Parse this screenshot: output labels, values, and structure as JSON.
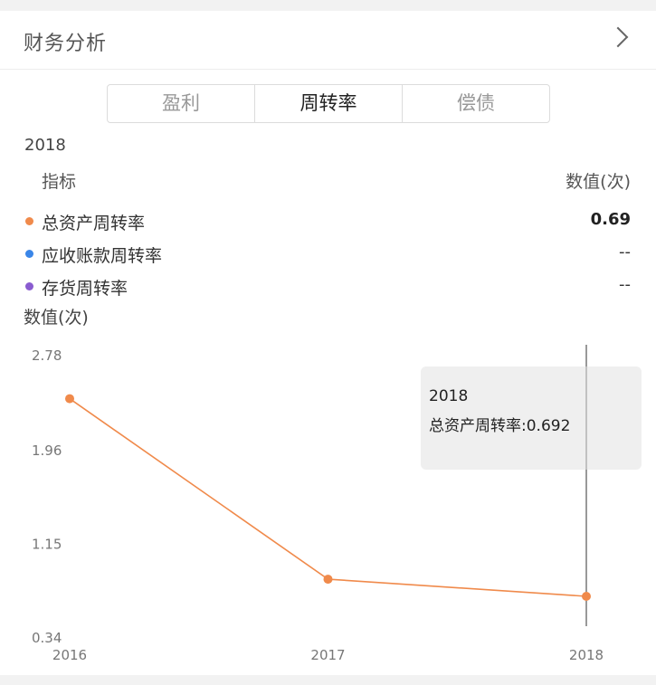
{
  "header": {
    "title": "财务分析"
  },
  "tabs": [
    {
      "label": "盈利",
      "active": false
    },
    {
      "label": "周转率",
      "active": true
    },
    {
      "label": "偿债",
      "active": false
    }
  ],
  "summary": {
    "year": "2018",
    "col_left": "指标",
    "col_right": "数值(次)",
    "rows": [
      {
        "name": "总资产周转率",
        "value": "0.69",
        "color": "#f08a4b"
      },
      {
        "name": "应收账款周转率",
        "value": "--",
        "color": "#3a86e8"
      },
      {
        "name": "存货周转率",
        "value": "--",
        "color": "#8a5cd0"
      }
    ]
  },
  "chart_data": {
    "type": "line",
    "ylabel": "数值(次)",
    "categories": [
      "2016",
      "2017",
      "2018"
    ],
    "yticks": [
      "2.78",
      "1.96",
      "1.15",
      "0.34"
    ],
    "ylim": [
      0.34,
      2.78
    ],
    "series": [
      {
        "name": "总资产周转率",
        "values": [
          2.4,
          0.84,
          0.692
        ],
        "color": "#f08a4b"
      }
    ],
    "tooltip": {
      "year": "2018",
      "text": "总资产周转率:0.692"
    }
  }
}
